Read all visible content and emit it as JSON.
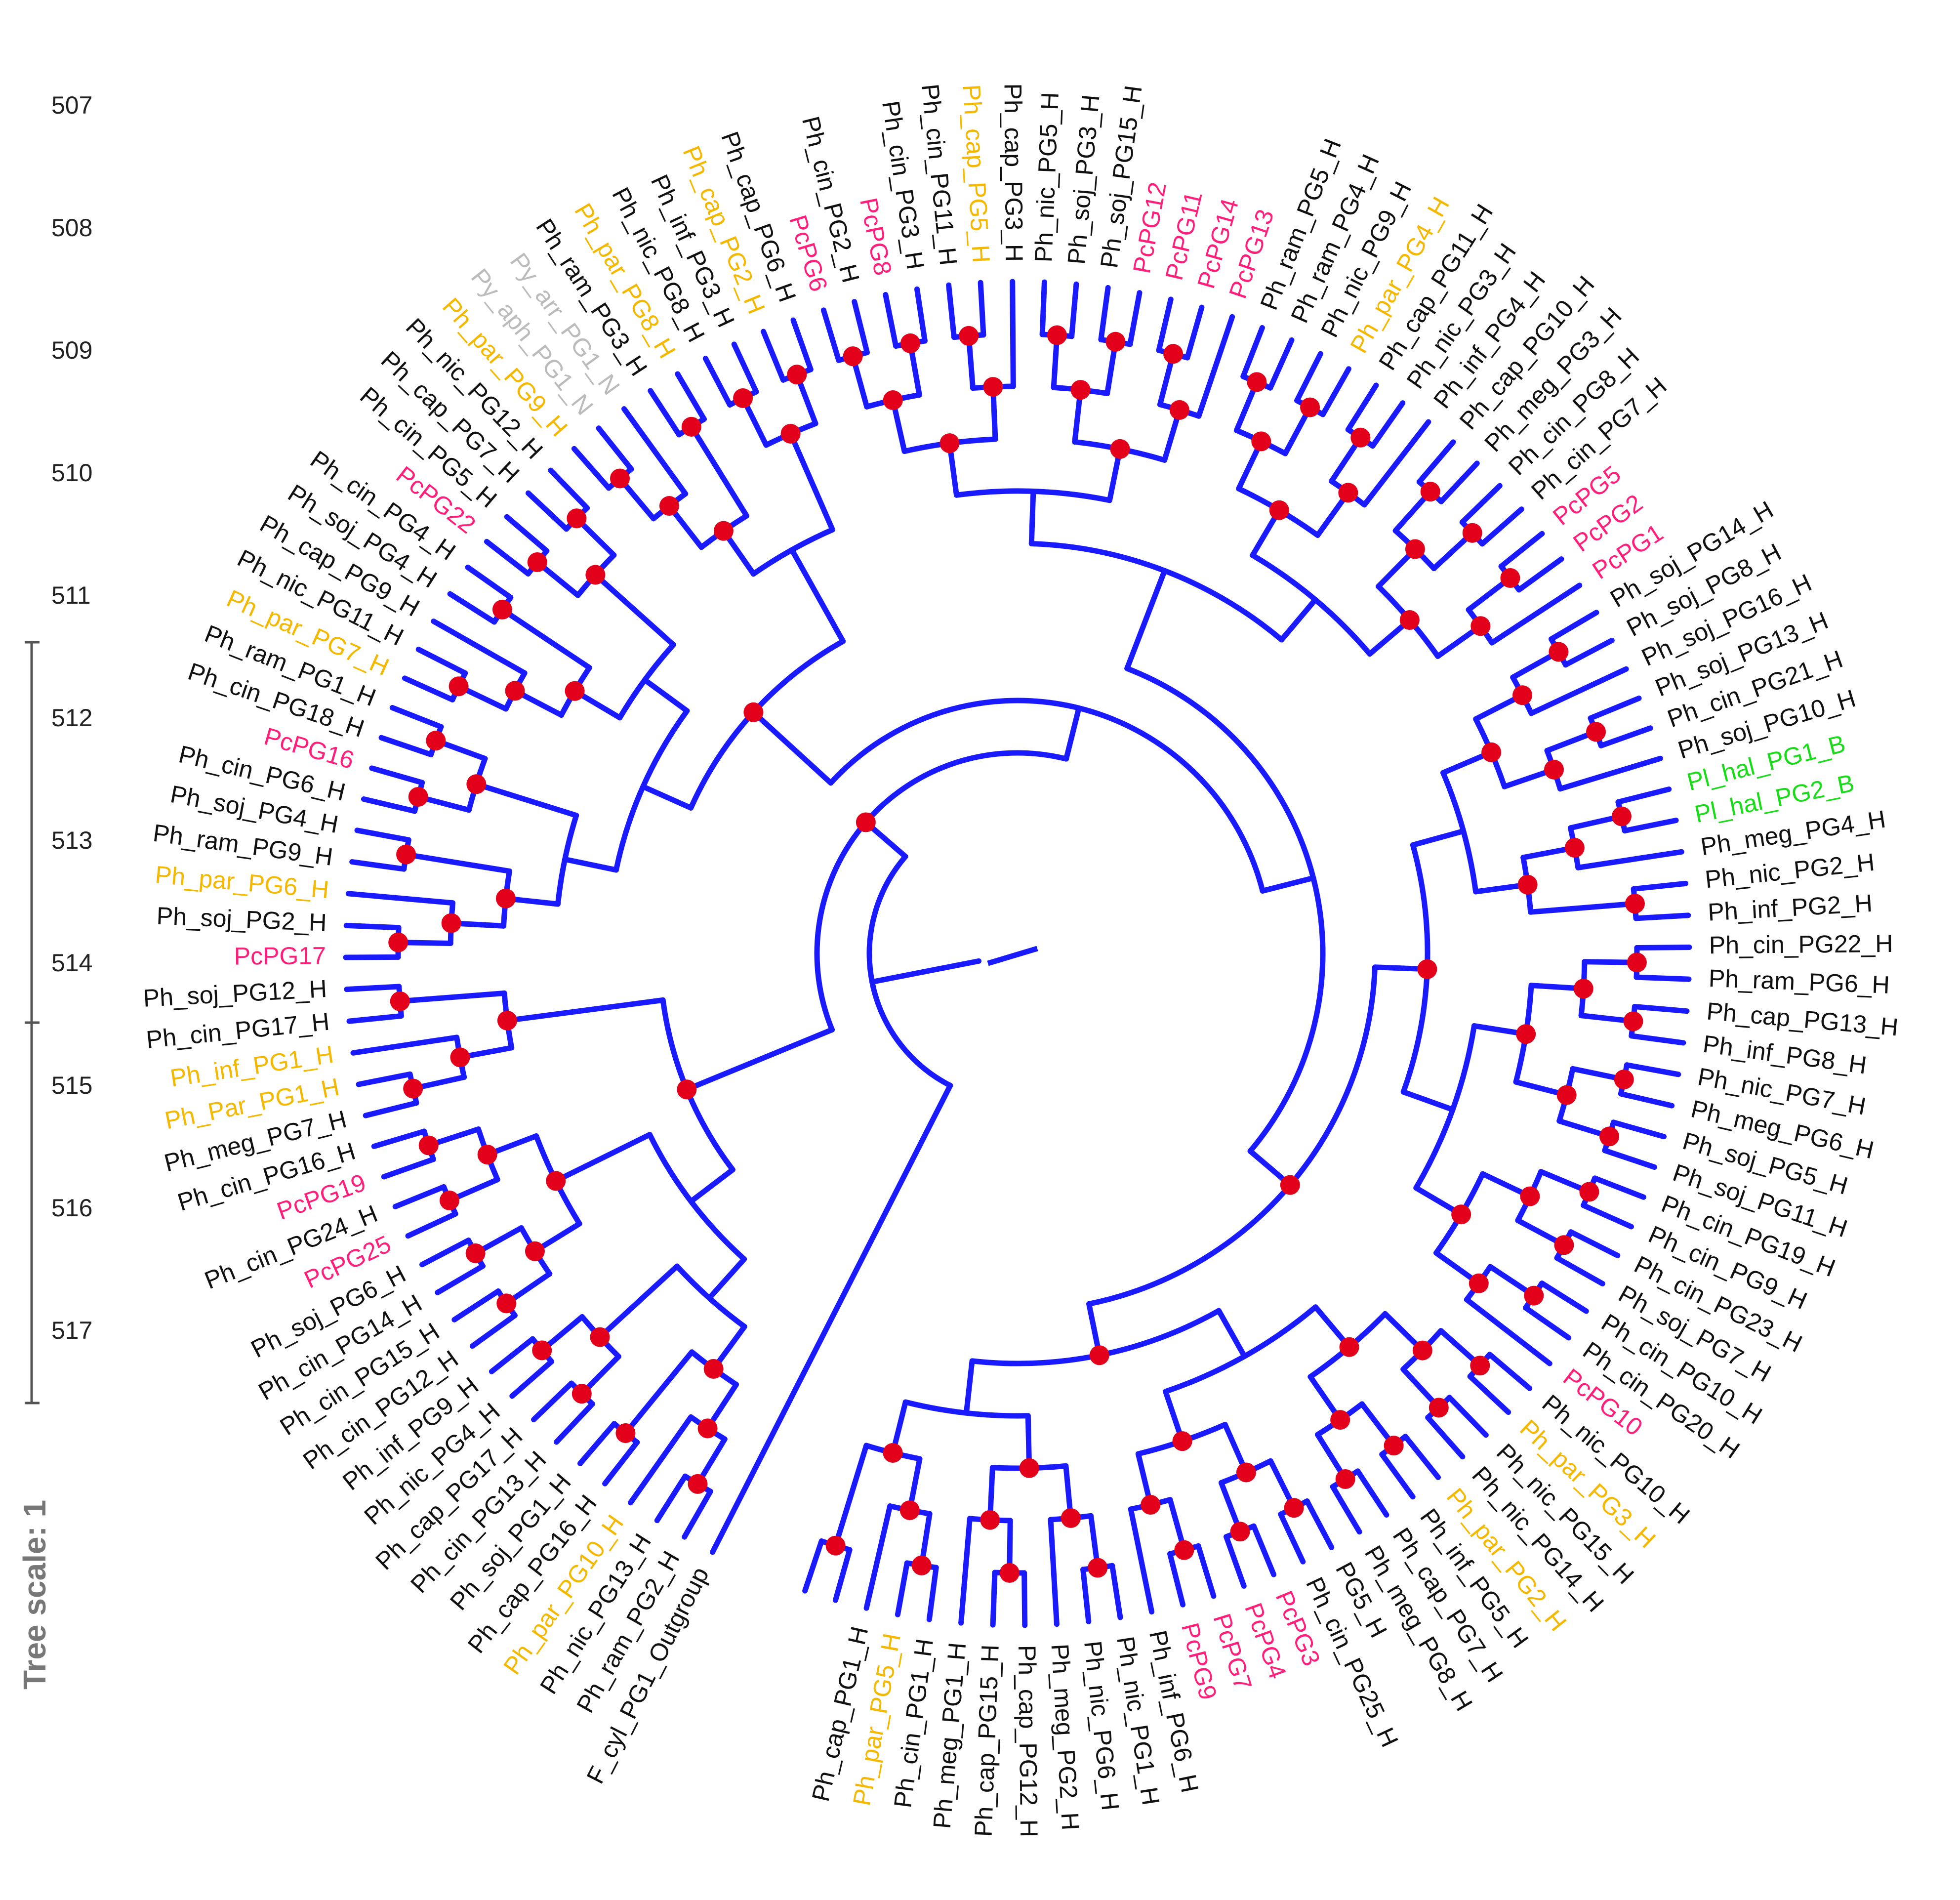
{
  "tree_scale": {
    "title": "Tree scale: 1",
    "ticks": [
      "507",
      "508",
      "509",
      "510",
      "511",
      "512",
      "513",
      "514",
      "515",
      "516",
      "517"
    ]
  },
  "colors": {
    "branch": "#1a1aff",
    "node": "#e3001b",
    "default_label": "#111111",
    "par_label": "#f5b800",
    "pc_label": "#ff1f7a",
    "grey_label": "#bbbbbb",
    "bacteria_label": "#1adb1a"
  },
  "leaves": [
    {
      "label": "F_cyl_PG1_Outgroup",
      "group": "default"
    },
    {
      "label": "Ph_ram_PG2_H",
      "group": "default"
    },
    {
      "label": "Ph_nic_PG13_H",
      "group": "default"
    },
    {
      "label": "Ph_par_PG10_H",
      "group": "par"
    },
    {
      "label": "Ph_cap_PG16_H",
      "group": "default"
    },
    {
      "label": "Ph_soj_PG1_H",
      "group": "default"
    },
    {
      "label": "Ph_cin_PG13_H",
      "group": "default"
    },
    {
      "label": "Ph_cap_PG17_H",
      "group": "default"
    },
    {
      "label": "Ph_nic_PG4_H",
      "group": "default"
    },
    {
      "label": "Ph_inf_PG9_H",
      "group": "default"
    },
    {
      "label": "Ph_cin_PG12_H",
      "group": "default"
    },
    {
      "label": "Ph_cin_PG15_H",
      "group": "default"
    },
    {
      "label": "Ph_cin_PG14_H",
      "group": "default"
    },
    {
      "label": "Ph_soj_PG6_H",
      "group": "default"
    },
    {
      "label": "PcPG25",
      "group": "pc"
    },
    {
      "label": "Ph_cin_PG24_H",
      "group": "default"
    },
    {
      "label": "PcPG19",
      "group": "pc"
    },
    {
      "label": "Ph_cin_PG16_H",
      "group": "default"
    },
    {
      "label": "Ph_meg_PG7_H",
      "group": "default"
    },
    {
      "label": "Ph_Par_PG1_H",
      "group": "par"
    },
    {
      "label": "Ph_inf_PG1_H",
      "group": "par"
    },
    {
      "label": "Ph_cin_PG17_H",
      "group": "default"
    },
    {
      "label": "Ph_soj_PG12_H",
      "group": "default"
    },
    {
      "label": "PcPG17",
      "group": "pc"
    },
    {
      "label": "Ph_soj_PG2_H",
      "group": "default"
    },
    {
      "label": "Ph_par_PG6_H",
      "group": "par"
    },
    {
      "label": "Ph_ram_PG9_H",
      "group": "default"
    },
    {
      "label": "Ph_soj_PG4_H",
      "group": "default"
    },
    {
      "label": "Ph_cin_PG6_H",
      "group": "default"
    },
    {
      "label": "PcPG16",
      "group": "pc"
    },
    {
      "label": "Ph_cin_PG18_H",
      "group": "default"
    },
    {
      "label": "Ph_ram_PG1_H",
      "group": "default"
    },
    {
      "label": "Ph_par_PG7_H",
      "group": "par"
    },
    {
      "label": "Ph_nic_PG11_H",
      "group": "default"
    },
    {
      "label": "Ph_cap_PG9_H",
      "group": "default"
    },
    {
      "label": "Ph_soj_PG4_H",
      "group": "default"
    },
    {
      "label": "Ph_cin_PG4_H",
      "group": "default"
    },
    {
      "label": "PcPG22",
      "group": "pc"
    },
    {
      "label": "Ph_cin_PG5_H",
      "group": "default"
    },
    {
      "label": "Ph_cap_PG7_H",
      "group": "default"
    },
    {
      "label": "Ph_nic_PG12_H",
      "group": "default"
    },
    {
      "label": "Ph_par_PG9_H",
      "group": "par"
    },
    {
      "label": "Py_aph_PG1_N",
      "group": "grey"
    },
    {
      "label": "Py_arr_PG1_N",
      "group": "grey"
    },
    {
      "label": "Ph_ram_PG3_H",
      "group": "default"
    },
    {
      "label": "Ph_par_PG8_H",
      "group": "par"
    },
    {
      "label": "Ph_nic_PG8_H",
      "group": "default"
    },
    {
      "label": "Ph_inf_PG3_H",
      "group": "default"
    },
    {
      "label": "Ph_cap_PG2_H",
      "group": "par"
    },
    {
      "label": "Ph_cap_PG6_H",
      "group": "default"
    },
    {
      "label": "PcPG6",
      "group": "pc"
    },
    {
      "label": "Ph_cin_PG2_H",
      "group": "default"
    },
    {
      "label": "PcPG8",
      "group": "pc"
    },
    {
      "label": "Ph_cin_PG3_H",
      "group": "default"
    },
    {
      "label": "Ph_cin_PG11_H",
      "group": "default"
    },
    {
      "label": "Ph_cap_PG5_H",
      "group": "par"
    },
    {
      "label": "Ph_cap_PG3_H",
      "group": "default"
    },
    {
      "label": "Ph_nic_PG5_H",
      "group": "default"
    },
    {
      "label": "Ph_soj_PG3_H",
      "group": "default"
    },
    {
      "label": "Ph_soj_PG15_H",
      "group": "default"
    },
    {
      "label": "PcPG12",
      "group": "pc"
    },
    {
      "label": "PcPG11",
      "group": "pc"
    },
    {
      "label": "PcPG14",
      "group": "pc"
    },
    {
      "label": "PcPG13",
      "group": "pc"
    },
    {
      "label": "Ph_ram_PG5_H",
      "group": "default"
    },
    {
      "label": "Ph_ram_PG4_H",
      "group": "default"
    },
    {
      "label": "Ph_nic_PG9_H",
      "group": "default"
    },
    {
      "label": "Ph_par_PG4_H",
      "group": "par"
    },
    {
      "label": "Ph_cap_PG11_H",
      "group": "default"
    },
    {
      "label": "Ph_nic_PG3_H",
      "group": "default"
    },
    {
      "label": "Ph_inf_PG4_H",
      "group": "default"
    },
    {
      "label": "Ph_cap_PG10_H",
      "group": "default"
    },
    {
      "label": "Ph_meg_PG3_H",
      "group": "default"
    },
    {
      "label": "Ph_cin_PG8_H",
      "group": "default"
    },
    {
      "label": "Ph_cin_PG7_H",
      "group": "default"
    },
    {
      "label": "PcPG5",
      "group": "pc"
    },
    {
      "label": "PcPG2",
      "group": "pc"
    },
    {
      "label": "PcPG1",
      "group": "pc"
    },
    {
      "label": "Ph_soj_PG14_H",
      "group": "default"
    },
    {
      "label": "Ph_soj_PG8_H",
      "group": "default"
    },
    {
      "label": "Ph_soj_PG16_H",
      "group": "default"
    },
    {
      "label": "Ph_soj_PG13_H",
      "group": "default"
    },
    {
      "label": "Ph_cin_PG21_H",
      "group": "default"
    },
    {
      "label": "Ph_soj_PG10_H",
      "group": "default"
    },
    {
      "label": "Pl_hal_PG1_B",
      "group": "bacteria"
    },
    {
      "label": "Pl_hal_PG2_B",
      "group": "bacteria"
    },
    {
      "label": "Ph_meg_PG4_H",
      "group": "default"
    },
    {
      "label": "Ph_nic_PG2_H",
      "group": "default"
    },
    {
      "label": "Ph_inf_PG2_H",
      "group": "default"
    },
    {
      "label": "Ph_cin_PG22_H",
      "group": "default"
    },
    {
      "label": "Ph_ram_PG6_H",
      "group": "default"
    },
    {
      "label": "Ph_cap_PG13_H",
      "group": "default"
    },
    {
      "label": "Ph_inf_PG8_H",
      "group": "default"
    },
    {
      "label": "Ph_nic_PG7_H",
      "group": "default"
    },
    {
      "label": "Ph_meg_PG6_H",
      "group": "default"
    },
    {
      "label": "Ph_soj_PG5_H",
      "group": "default"
    },
    {
      "label": "Ph_soj_PG11_H",
      "group": "default"
    },
    {
      "label": "Ph_cin_PG19_H",
      "group": "default"
    },
    {
      "label": "Ph_cin_PG9_H",
      "group": "default"
    },
    {
      "label": "Ph_cin_PG23_H",
      "group": "default"
    },
    {
      "label": "Ph_soj_PG7_H",
      "group": "default"
    },
    {
      "label": "Ph_cin_PG10_H",
      "group": "default"
    },
    {
      "label": "Ph_cin_PG20_H",
      "group": "default"
    },
    {
      "label": "PcPG10",
      "group": "pc"
    },
    {
      "label": "Ph_nic_PG10_H",
      "group": "default"
    },
    {
      "label": "Ph_par_PG3_H",
      "group": "par"
    },
    {
      "label": "Ph_nic_PG15_H",
      "group": "default"
    },
    {
      "label": "Ph_nic_PG14_H",
      "group": "default"
    },
    {
      "label": "Ph_par_PG2_H",
      "group": "par"
    },
    {
      "label": "Ph_inf_PG5_H",
      "group": "default"
    },
    {
      "label": "Ph_cap_PG7_H",
      "group": "default"
    },
    {
      "label": "Ph_meg_PG8_H",
      "group": "default"
    },
    {
      "label": "PG5_H",
      "group": "default"
    },
    {
      "label": "Ph_cin_PG25_H",
      "group": "default"
    },
    {
      "label": "PcPG3",
      "group": "pc"
    },
    {
      "label": "PcPG4",
      "group": "pc"
    },
    {
      "label": "PcPG7",
      "group": "pc"
    },
    {
      "label": "PcPG9",
      "group": "pc"
    },
    {
      "label": "Ph_inf_PG6_H",
      "group": "default"
    },
    {
      "label": "Ph_nic_PG1_H",
      "group": "default"
    },
    {
      "label": "Ph_nic_PG6_H",
      "group": "default"
    },
    {
      "label": "Ph_meg_PG2_H",
      "group": "default"
    },
    {
      "label": "Ph_cap_PG12_H",
      "group": "default"
    },
    {
      "label": "Ph_cap_PG15_H",
      "group": "default"
    },
    {
      "label": "Ph_meg_PG1_H",
      "group": "default"
    },
    {
      "label": "Ph_cin_PG1_H",
      "group": "default"
    },
    {
      "label": "Ph_par_PG5_H",
      "group": "par"
    },
    {
      "label": "Ph_cap_PG1_H",
      "group": "default"
    }
  ]
}
